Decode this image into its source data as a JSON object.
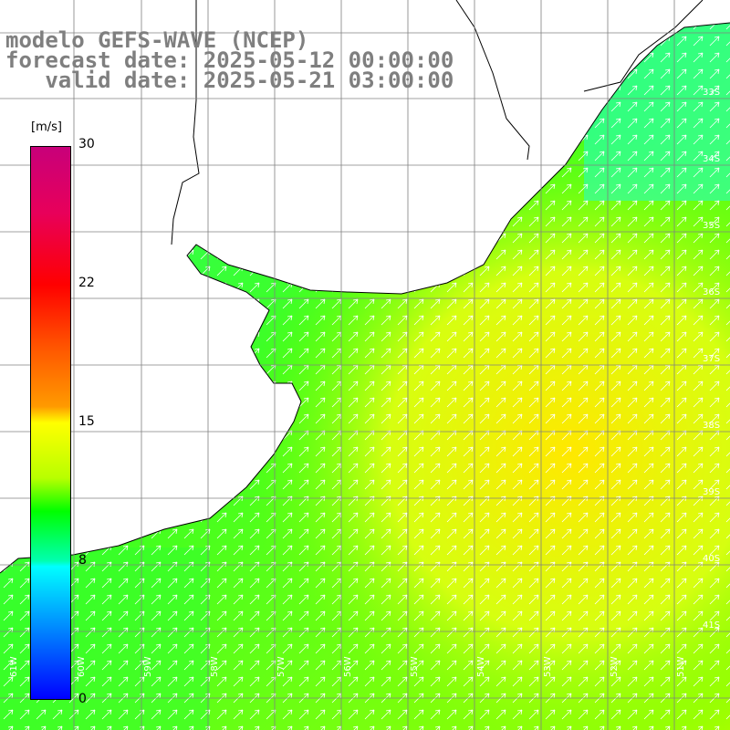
{
  "title": {
    "line1": "modelo GEFS-WAVE (NCEP)",
    "line2": "forecast date: 2025-05-12 00:00:00",
    "line3": "   valid date: 2025-05-21 03:00:00"
  },
  "colorbar": {
    "unit": "[m/s]",
    "ticks": [
      "30",
      "22",
      "15",
      "8",
      "0"
    ],
    "colors": [
      "#c8007a",
      "#ff0000",
      "#ff9a00",
      "#ffff00",
      "#00ff00",
      "#00ffff",
      "#0000ff"
    ]
  },
  "grid": {
    "longitudes": [
      "61W",
      "60W",
      "59W",
      "58W",
      "57W",
      "56W",
      "55W",
      "54W",
      "53W",
      "52W",
      "51W"
    ],
    "latitudes": [
      "33S",
      "34S",
      "35S",
      "36S",
      "37S",
      "38S",
      "39S",
      "40S",
      "41S"
    ]
  },
  "field": {
    "variable": "wind speed",
    "units": "m/s",
    "arrow_direction": "north-east",
    "min_visible": 8,
    "max_visible": 16
  }
}
